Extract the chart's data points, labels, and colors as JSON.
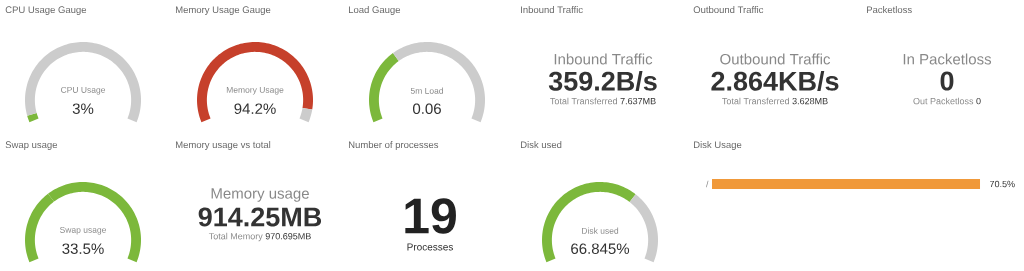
{
  "chart_data": [
    {
      "type": "donut",
      "title": "CPU Usage Gauge",
      "categories": [
        null,
        null
      ],
      "values": [
        3,
        97
      ],
      "colors": [
        "#7cb83b",
        "#cccccc"
      ],
      "annotations": [
        "CPU Usage",
        "3%"
      ]
    },
    {
      "type": "donut",
      "title": "Memory Usage Gauge",
      "categories": [
        null,
        null
      ],
      "values": [
        94.2,
        5.8
      ],
      "colors": [
        "#c6402b",
        "#cccccc"
      ],
      "annotations": [
        "Memory Usage",
        "94.2%"
      ]
    },
    {
      "type": "donut",
      "title": "Load Gauge",
      "categories": [
        null,
        null
      ],
      "values": [
        34,
        66
      ],
      "colors": [
        "#7cb83b",
        "#cccccc"
      ],
      "annotations": [
        "5m Load",
        "0.06"
      ]
    },
    {
      "type": "other",
      "title": "Inbound Traffic",
      "annotations": [
        "Inbound Traffic",
        "359.2B/s",
        "Total Transferred",
        "7.637MB"
      ]
    },
    {
      "type": "other",
      "title": "Outbound Traffic",
      "annotations": [
        "Outbound Traffic",
        "2.864KB/s",
        "Total Transferred",
        "3.628MB"
      ]
    },
    {
      "type": "other",
      "title": "Packetloss",
      "annotations": [
        "In Packetloss",
        "0",
        "Out Packetloss",
        "0"
      ]
    },
    {
      "type": "donut",
      "title": "Swap usage",
      "categories": [
        null,
        null
      ],
      "values": [
        33.5,
        66.5
      ],
      "colors": [
        "#7cb83b",
        "#7cb83b"
      ],
      "annotations": [
        "Swap usage",
        "33.5%"
      ]
    },
    {
      "type": "other",
      "title": "Memory usage vs total",
      "annotations": [
        "Memory usage",
        "914.25MB",
        "Total Memory",
        "970.695MB"
      ]
    },
    {
      "type": "other",
      "title": "Number of processes",
      "annotations": [
        "19",
        "Processes"
      ]
    },
    {
      "type": "donut",
      "title": "Disk used",
      "categories": [
        null,
        null
      ],
      "values": [
        66.845,
        33.155
      ],
      "colors": [
        "#7cb83b",
        "#cccccc"
      ],
      "annotations": [
        "Disk used",
        "66.845%"
      ]
    },
    {
      "type": "bar",
      "title": "Disk Usage",
      "orientation": "horizontal",
      "categories": [
        "/"
      ],
      "values": [
        70.5
      ],
      "value_labels": [
        "70.5%"
      ],
      "color": "#f0993a"
    }
  ]
}
